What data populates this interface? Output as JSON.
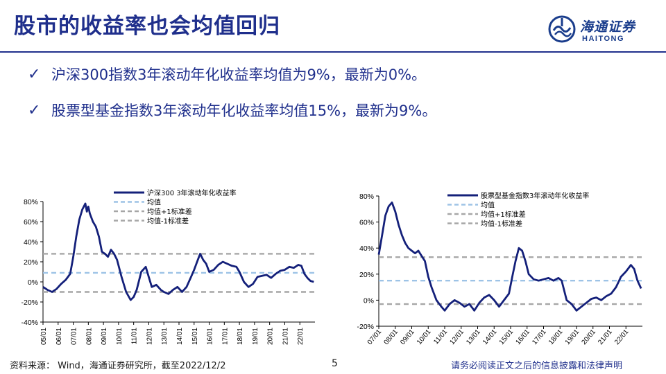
{
  "slide": {
    "title": "股市的收益率也会均值回归",
    "logo_cn": "海通证券",
    "logo_en": "HAITONG",
    "bullets": [
      "沪深300指数3年滚动年化收益率均值为9%，最新为0%。",
      "股票型基金指数3年滚动年化收益率均值15%，最新为9%。"
    ],
    "source": "资料来源：  Wind，海通证券研究所，截至2022/12/2",
    "page_number": "5",
    "disclaimer": "请务必阅读正文之后的信息披露和法律声明"
  },
  "colors": {
    "title_blue": "#1f2f8c",
    "series_line": "#14207a",
    "mean_line": "#9dc3e6",
    "std_line": "#a6a6a6"
  },
  "chart_data": [
    {
      "type": "line",
      "ylim": [
        -40,
        80
      ],
      "yticks": [
        "80%",
        "60%",
        "40%",
        "20%",
        "0%",
        "-20%",
        "-40%"
      ],
      "yvalues": [
        80,
        60,
        40,
        20,
        0,
        -20,
        -40
      ],
      "xlim": [
        2005,
        2023
      ],
      "xticks": [
        "05/01",
        "06/01",
        "07/01",
        "08/01",
        "09/01",
        "10/01",
        "11/01",
        "12/01",
        "13/01",
        "14/01",
        "15/01",
        "16/01",
        "17/01",
        "18/01",
        "19/01",
        "20/01",
        "21/01",
        "22/01"
      ],
      "legend_position": "top-right",
      "legend": [
        "沪深300 3年滚动年化收益率",
        "均值",
        "均值+1标准差",
        "均值-1标准差"
      ],
      "mean": 9,
      "upper": 28,
      "lower": -10,
      "series": {
        "x": [
          2005.0,
          2005.3,
          2005.6,
          2005.9,
          2006.2,
          2006.5,
          2006.8,
          2007.0,
          2007.2,
          2007.4,
          2007.6,
          2007.8,
          2007.9,
          2008.0,
          2008.1,
          2008.3,
          2008.5,
          2008.7,
          2008.9,
          2009.1,
          2009.3,
          2009.5,
          2009.7,
          2009.9,
          2010.2,
          2010.5,
          2010.8,
          2011.0,
          2011.2,
          2011.5,
          2011.8,
          2012.0,
          2012.2,
          2012.5,
          2012.8,
          2013.0,
          2013.3,
          2013.6,
          2013.9,
          2014.2,
          2014.5,
          2014.8,
          2015.0,
          2015.2,
          2015.4,
          2015.6,
          2015.8,
          2016.0,
          2016.3,
          2016.6,
          2016.9,
          2017.2,
          2017.5,
          2017.8,
          2018.0,
          2018.3,
          2018.6,
          2018.9,
          2019.2,
          2019.5,
          2019.8,
          2020.1,
          2020.4,
          2020.7,
          2021.0,
          2021.3,
          2021.6,
          2021.9,
          2022.1,
          2022.3,
          2022.5,
          2022.7,
          2022.92
        ],
        "y": [
          -5,
          -8,
          -10,
          -7,
          -2,
          2,
          8,
          25,
          45,
          62,
          72,
          78,
          70,
          75,
          68,
          60,
          55,
          45,
          30,
          28,
          25,
          32,
          28,
          22,
          5,
          -10,
          -18,
          -15,
          -8,
          10,
          15,
          5,
          -5,
          -3,
          -8,
          -10,
          -12,
          -8,
          -5,
          -10,
          -5,
          5,
          12,
          20,
          28,
          22,
          18,
          10,
          12,
          17,
          20,
          18,
          16,
          15,
          10,
          0,
          -5,
          -2,
          5,
          6,
          7,
          4,
          8,
          11,
          12,
          15,
          14,
          17,
          16,
          8,
          4,
          1,
          0
        ]
      }
    },
    {
      "type": "line",
      "ylim": [
        -20,
        80
      ],
      "yticks": [
        "80%",
        "60%",
        "40%",
        "20%",
        "0%",
        "-20%"
      ],
      "yvalues": [
        80,
        60,
        40,
        20,
        0,
        -20
      ],
      "xlim": [
        2007,
        2023
      ],
      "xticks": [
        "07/01",
        "08/01",
        "09/01",
        "10/01",
        "11/01",
        "12/01",
        "13/01",
        "14/01",
        "15/01",
        "16/01",
        "17/01",
        "18/01",
        "19/01",
        "20/01",
        "21/01",
        "22/01"
      ],
      "legend_position": "top-right",
      "legend": [
        "股票型基金指数3年滚动年化收益率",
        "均值",
        "均值+1标准差",
        "均值-1标准差"
      ],
      "mean": 15,
      "upper": 33,
      "lower": -3,
      "series": {
        "x": [
          2007.0,
          2007.2,
          2007.4,
          2007.6,
          2007.8,
          2008.0,
          2008.2,
          2008.4,
          2008.6,
          2008.8,
          2009.0,
          2009.2,
          2009.4,
          2009.6,
          2009.8,
          2010.0,
          2010.2,
          2010.5,
          2010.8,
          2011.0,
          2011.3,
          2011.6,
          2011.9,
          2012.2,
          2012.5,
          2012.8,
          2013.1,
          2013.4,
          2013.7,
          2014.0,
          2014.3,
          2014.6,
          2014.9,
          2015.1,
          2015.3,
          2015.5,
          2015.7,
          2015.9,
          2016.1,
          2016.4,
          2016.7,
          2017.0,
          2017.3,
          2017.6,
          2017.9,
          2018.1,
          2018.4,
          2018.7,
          2019.0,
          2019.3,
          2019.6,
          2019.9,
          2020.2,
          2020.5,
          2020.8,
          2021.1,
          2021.4,
          2021.7,
          2022.0,
          2022.3,
          2022.5,
          2022.7,
          2022.92
        ],
        "y": [
          35,
          50,
          65,
          72,
          75,
          68,
          58,
          50,
          44,
          40,
          38,
          36,
          38,
          34,
          30,
          18,
          10,
          0,
          -5,
          -8,
          -3,
          0,
          -2,
          -5,
          -3,
          -8,
          -2,
          2,
          4,
          0,
          -5,
          0,
          5,
          18,
          30,
          40,
          38,
          30,
          20,
          16,
          15,
          16,
          17,
          15,
          17,
          15,
          0,
          -3,
          -8,
          -5,
          -2,
          1,
          2,
          0,
          3,
          5,
          10,
          18,
          22,
          27,
          24,
          15,
          9
        ]
      }
    }
  ]
}
